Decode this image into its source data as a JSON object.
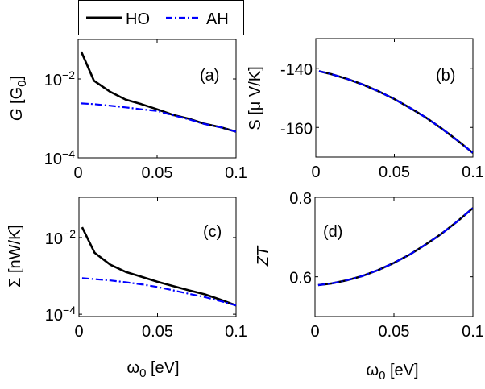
{
  "chart_data": [
    {
      "panel": "(a)",
      "type": "line",
      "yscale": "log",
      "ylabel": [
        {
          "t": "G",
          "italic": true
        },
        {
          "t": " [G"
        },
        {
          "t": "0",
          "sub": true
        },
        {
          "t": "]"
        }
      ],
      "xlabel": [],
      "xlim": [
        0,
        0.1
      ],
      "ylim": [
        0.0001,
        0.1
      ],
      "x_ticks": [
        0,
        0.05,
        0.1
      ],
      "x_tick_labels": [
        "0",
        "0.05",
        "0.1"
      ],
      "y_ticks": [
        0.01,
        0.0001
      ],
      "y_tick_labels": [
        {
          "base": "10",
          "exp": "−2"
        },
        {
          "base": "10",
          "exp": "−4"
        }
      ],
      "x": [
        0.002,
        0.01,
        0.02,
        0.03,
        0.04,
        0.05,
        0.06,
        0.07,
        0.08,
        0.09,
        0.1
      ],
      "series": [
        {
          "name": "HO",
          "values": [
            0.049,
            0.009,
            0.0048,
            0.003,
            0.0023,
            0.0017,
            0.00123,
            0.00098,
            0.00073,
            0.0006,
            0.00046
          ]
        },
        {
          "name": "AH",
          "values": [
            0.0024,
            0.0023,
            0.0021,
            0.0019,
            0.0017,
            0.00155,
            0.0012,
            0.00095,
            0.00072,
            0.0006,
            0.00046
          ]
        }
      ]
    },
    {
      "panel": "(b)",
      "type": "line",
      "yscale": "linear",
      "ylabel": [
        {
          "t": "S [μ V/K]"
        }
      ],
      "xlabel": [],
      "xlim": [
        0,
        0.1
      ],
      "ylim": [
        -170,
        -130
      ],
      "x_ticks": [
        0,
        0.05,
        0.1
      ],
      "x_tick_labels": [
        "0",
        "0.05",
        "0.1"
      ],
      "y_ticks": [
        -140,
        -160
      ],
      "y_tick_labels": [
        {
          "base": "-140"
        },
        {
          "base": "-160"
        }
      ],
      "x": [
        0.002,
        0.01,
        0.02,
        0.03,
        0.04,
        0.05,
        0.06,
        0.07,
        0.08,
        0.09,
        0.1
      ],
      "series": [
        {
          "name": "HO",
          "values": [
            -141.0,
            -142.0,
            -143.6,
            -145.5,
            -147.8,
            -150.4,
            -153.4,
            -156.6,
            -160.3,
            -164.3,
            -168.6
          ]
        },
        {
          "name": "AH",
          "values": [
            -141.0,
            -142.0,
            -143.6,
            -145.5,
            -147.8,
            -150.4,
            -153.4,
            -156.6,
            -160.3,
            -164.3,
            -168.6
          ]
        }
      ]
    },
    {
      "panel": "(c)",
      "type": "line",
      "yscale": "log",
      "ylabel": [
        {
          "t": "Σ [nW/K]"
        }
      ],
      "xlabel": [
        {
          "t": "ω"
        },
        {
          "t": "0",
          "sub": true
        },
        {
          "t": " [eV]"
        }
      ],
      "xlim": [
        0,
        0.1
      ],
      "ylim": [
        8.7e-05,
        0.112
      ],
      "x_ticks": [
        0,
        0.05,
        0.1
      ],
      "x_tick_labels": [
        "0",
        "0.05",
        "0.1"
      ],
      "y_ticks": [
        0.01,
        0.0001
      ],
      "y_tick_labels": [
        {
          "base": "10",
          "exp": "−2"
        },
        {
          "base": "10",
          "exp": "−4"
        }
      ],
      "x": [
        0.002,
        0.01,
        0.02,
        0.03,
        0.04,
        0.05,
        0.06,
        0.07,
        0.08,
        0.09,
        0.1
      ],
      "series": [
        {
          "name": "HO",
          "values": [
            0.0186,
            0.004,
            0.00195,
            0.00126,
            0.00094,
            0.0007,
            0.00054,
            0.00042,
            0.00033,
            0.00024,
            0.00017
          ]
        },
        {
          "name": "AH",
          "values": [
            0.00087,
            0.00082,
            0.00076,
            0.00068,
            0.0006,
            0.00051,
            0.00042,
            0.00034,
            0.00028,
            0.00022,
            0.00017
          ]
        }
      ]
    },
    {
      "panel": "(d)",
      "type": "line",
      "yscale": "linear",
      "ylabel": [
        {
          "t": "ZT",
          "italic": true
        }
      ],
      "xlabel": [
        {
          "t": "ω"
        },
        {
          "t": "0",
          "sub": true
        },
        {
          "t": " [eV]"
        }
      ],
      "xlim": [
        0,
        0.1
      ],
      "ylim": [
        0.5,
        0.8
      ],
      "x_ticks": [
        0,
        0.05,
        0.1
      ],
      "x_tick_labels": [
        "0",
        "0.05",
        "0.1"
      ],
      "y_ticks": [
        0.8,
        0.6
      ],
      "y_tick_labels": [
        {
          "base": "0.8"
        },
        {
          "base": "0.6"
        }
      ],
      "x": [
        0.002,
        0.01,
        0.02,
        0.03,
        0.04,
        0.05,
        0.06,
        0.07,
        0.08,
        0.09,
        0.1
      ],
      "series": [
        {
          "name": "HO",
          "values": [
            0.579,
            0.583,
            0.591,
            0.602,
            0.617,
            0.635,
            0.656,
            0.681,
            0.708,
            0.739,
            0.773
          ]
        },
        {
          "name": "AH",
          "values": [
            0.579,
            0.583,
            0.591,
            0.602,
            0.617,
            0.635,
            0.656,
            0.681,
            0.708,
            0.739,
            0.773
          ]
        }
      ]
    }
  ],
  "legend": {
    "placement": "top, above panel (a)",
    "entries": [
      {
        "label": "HO",
        "style": "solid",
        "color": "#000000"
      },
      {
        "label": "AH",
        "style": "dash-dot",
        "color": "#0000ff"
      }
    ]
  },
  "colors": {
    "HO": "#000000",
    "AH": "#0000ff"
  }
}
